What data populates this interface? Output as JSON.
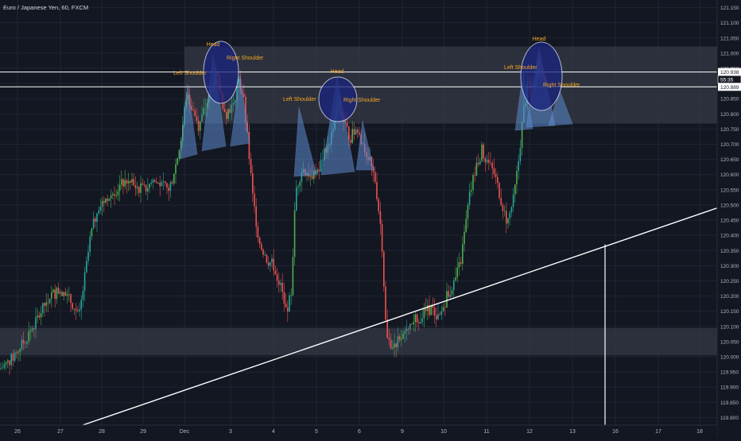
{
  "header": {
    "title": "Euro / Japanese Yen, 60, FXCM"
  },
  "colors": {
    "background": "#131722",
    "grid": "#1f2430",
    "axis_text": "#b2b5be",
    "up_candle": "#26a69a",
    "up_candle_bright": "#4caf50",
    "down_candle": "#ef5350",
    "zone": "#363a45",
    "pattern_fill": "#5b8bd0",
    "circle_fill": "#1a237e",
    "label": "#f5a623",
    "line": "#ffffff"
  },
  "chart_data": {
    "type": "candlestick",
    "symbol": "EURJPY",
    "timeframe": "60",
    "source": "FXCM",
    "x_ticks": [
      "26",
      "27",
      "28",
      "29",
      "Dec",
      "3",
      "4",
      "5",
      "6",
      "9",
      "10",
      "11",
      "12",
      "13",
      "16",
      "17",
      "18"
    ],
    "y_ticks": [
      "121.150",
      "121.100",
      "121.050",
      "121.000",
      "120.950",
      "120.900",
      "120.850",
      "120.800",
      "120.750",
      "120.700",
      "120.650",
      "120.600",
      "120.550",
      "120.500",
      "120.450",
      "120.400",
      "120.350",
      "120.300",
      "120.250",
      "120.200",
      "120.150",
      "120.100",
      "120.050",
      "120.000",
      "119.950",
      "119.900",
      "119.850",
      "119.800"
    ],
    "ylim": [
      119.775,
      121.175
    ],
    "price_labels": [
      {
        "text": "120.938",
        "value": 120.938
      },
      {
        "text": "55:35",
        "value": 120.913
      },
      {
        "text": "120.889",
        "value": 120.889
      }
    ],
    "horizontal_lines": [
      120.938,
      120.889
    ],
    "zones": [
      {
        "from": 120.768,
        "to": 121.022,
        "x_start": "Dec"
      },
      {
        "from": 120.005,
        "to": 120.095,
        "x_start": "start"
      }
    ],
    "trendline": {
      "from": [
        "27",
        119.775
      ],
      "to": [
        "18",
        120.49
      ]
    },
    "vertical_line": {
      "x": "16",
      "top": 120.37
    },
    "patterns": [
      {
        "name": "Head and Shoulders 1",
        "labels": [
          {
            "text": "Head",
            "role": "head"
          },
          {
            "text": "Left Shoulder",
            "role": "left-shoulder"
          },
          {
            "text": "Right Shoulder",
            "role": "right-shoulder"
          }
        ]
      },
      {
        "name": "Head and Shoulders 2",
        "labels": [
          {
            "text": "Head",
            "role": "head"
          },
          {
            "text": "Left Shoulder",
            "role": "left-shoulder"
          },
          {
            "text": "Right Shoulder",
            "role": "right-shoulder"
          }
        ]
      },
      {
        "name": "Head and Shoulders 3",
        "labels": [
          {
            "text": "Head",
            "role": "head"
          },
          {
            "text": "Left Shoulder",
            "role": "left-shoulder"
          },
          {
            "text": "Right Shoulder",
            "role": "right-shoulder"
          }
        ]
      }
    ]
  }
}
